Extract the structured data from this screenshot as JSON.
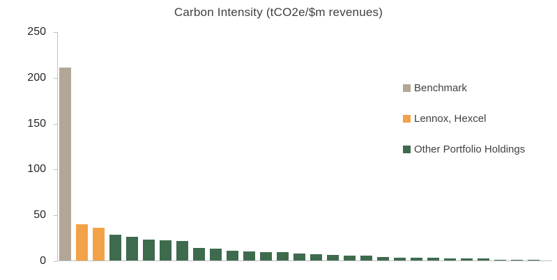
{
  "chart_data": {
    "type": "bar",
    "title": "Carbon Intensity (tCO2e/$m revenues)",
    "xlabel": "",
    "ylabel": "",
    "ylim": [
      0,
      250
    ],
    "yticks": [
      250,
      200,
      150,
      100,
      50,
      0
    ],
    "grid": false,
    "legend_position": "right",
    "series": [
      {
        "name": "Benchmark",
        "color": "#B2A696",
        "values": [
          211
        ]
      },
      {
        "name": "Lennox, Hexcel",
        "color": "#F2A249",
        "values": [
          40,
          36
        ]
      },
      {
        "name": "Other Portfolio Holdings",
        "color": "#3E6B4E",
        "values": [
          28,
          26,
          23,
          22,
          21,
          14,
          13,
          11,
          10,
          9,
          9,
          8,
          7,
          6,
          5,
          5,
          4,
          3,
          3,
          3,
          2,
          2,
          2,
          1,
          1,
          1
        ]
      }
    ],
    "legend": [
      {
        "label": "Benchmark",
        "color": "#B2A696"
      },
      {
        "label": "Lennox, Hexcel",
        "color": "#F2A249"
      },
      {
        "label": "Other Portfolio Holdings",
        "color": "#3E6B4E"
      }
    ]
  }
}
